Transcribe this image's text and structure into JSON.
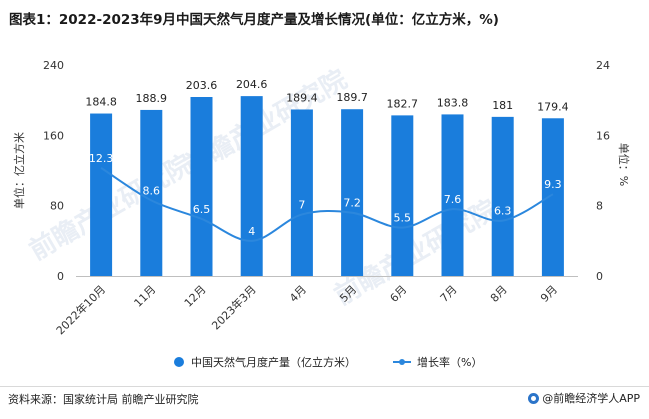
{
  "title": "图表1：2022-2023年9月中国天然气月度产量及增长情况(单位：亿立方米，%)",
  "source": "资料来源：国家统计局 前瞻产业研究院",
  "brand": "@前瞻经济学人APP",
  "watermark": "前瞻产业研究院",
  "colors": {
    "bar": "#1a7ddc",
    "line": "#2b87dd",
    "axis": "#bfbfbf"
  },
  "chart_data": {
    "type": "bar+line",
    "categories": [
      "2022年10月",
      "11月",
      "12月",
      "2023年3月",
      "4月",
      "5月",
      "6月",
      "7月",
      "8月",
      "9月"
    ],
    "series": [
      {
        "name": "中国天然气月度产量（亿立方米）",
        "type": "bar",
        "axis": "left",
        "values": [
          184.8,
          188.9,
          203.6,
          204.6,
          189.4,
          189.7,
          182.7,
          183.8,
          181,
          179.4
        ]
      },
      {
        "name": "增长率（%）",
        "type": "line",
        "axis": "right",
        "values": [
          12.3,
          8.6,
          6.5,
          4,
          7,
          7.2,
          5.5,
          7.6,
          6.3,
          9.3
        ]
      }
    ],
    "y_left": {
      "label": "单位：亿立方米",
      "min": 0,
      "max": 240,
      "ticks": [
        0,
        80,
        160,
        240
      ]
    },
    "y_right": {
      "label": "单位：%",
      "min": 0,
      "max": 24,
      "ticks": [
        0,
        8,
        16,
        24
      ]
    },
    "legend": [
      "中国天然气月度产量（亿立方米）",
      "增长率（%）"
    ]
  }
}
